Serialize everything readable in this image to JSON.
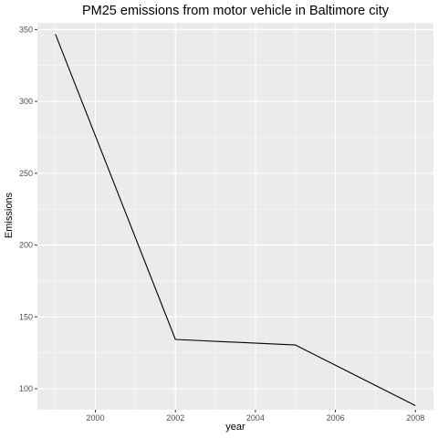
{
  "chart_data": {
    "type": "line",
    "title": "PM25 emissions from motor vehicle in Baltimore city",
    "xlabel": "year",
    "ylabel": "Emissions",
    "x": [
      1999,
      2002,
      2005,
      2008
    ],
    "series": [
      {
        "values": [
          346.82,
          134.31,
          130.43,
          88.28
        ]
      }
    ],
    "xlim": [
      1998.55,
      2008.45
    ],
    "ylim": [
      85.4,
      354.7
    ],
    "x_ticks": [
      2000,
      2002,
      2004,
      2006,
      2008
    ],
    "x_tick_labels": [
      "2000",
      "2002",
      "2004",
      "2006",
      "2008"
    ],
    "y_ticks": [
      100,
      150,
      200,
      250,
      300,
      350
    ],
    "y_tick_labels": [
      "100",
      "150",
      "200",
      "250",
      "300",
      "350"
    ],
    "panel_background": "#ebebeb",
    "grid_color": "#ffffff",
    "line_color": "#000000",
    "grid": true,
    "legend": "none"
  }
}
